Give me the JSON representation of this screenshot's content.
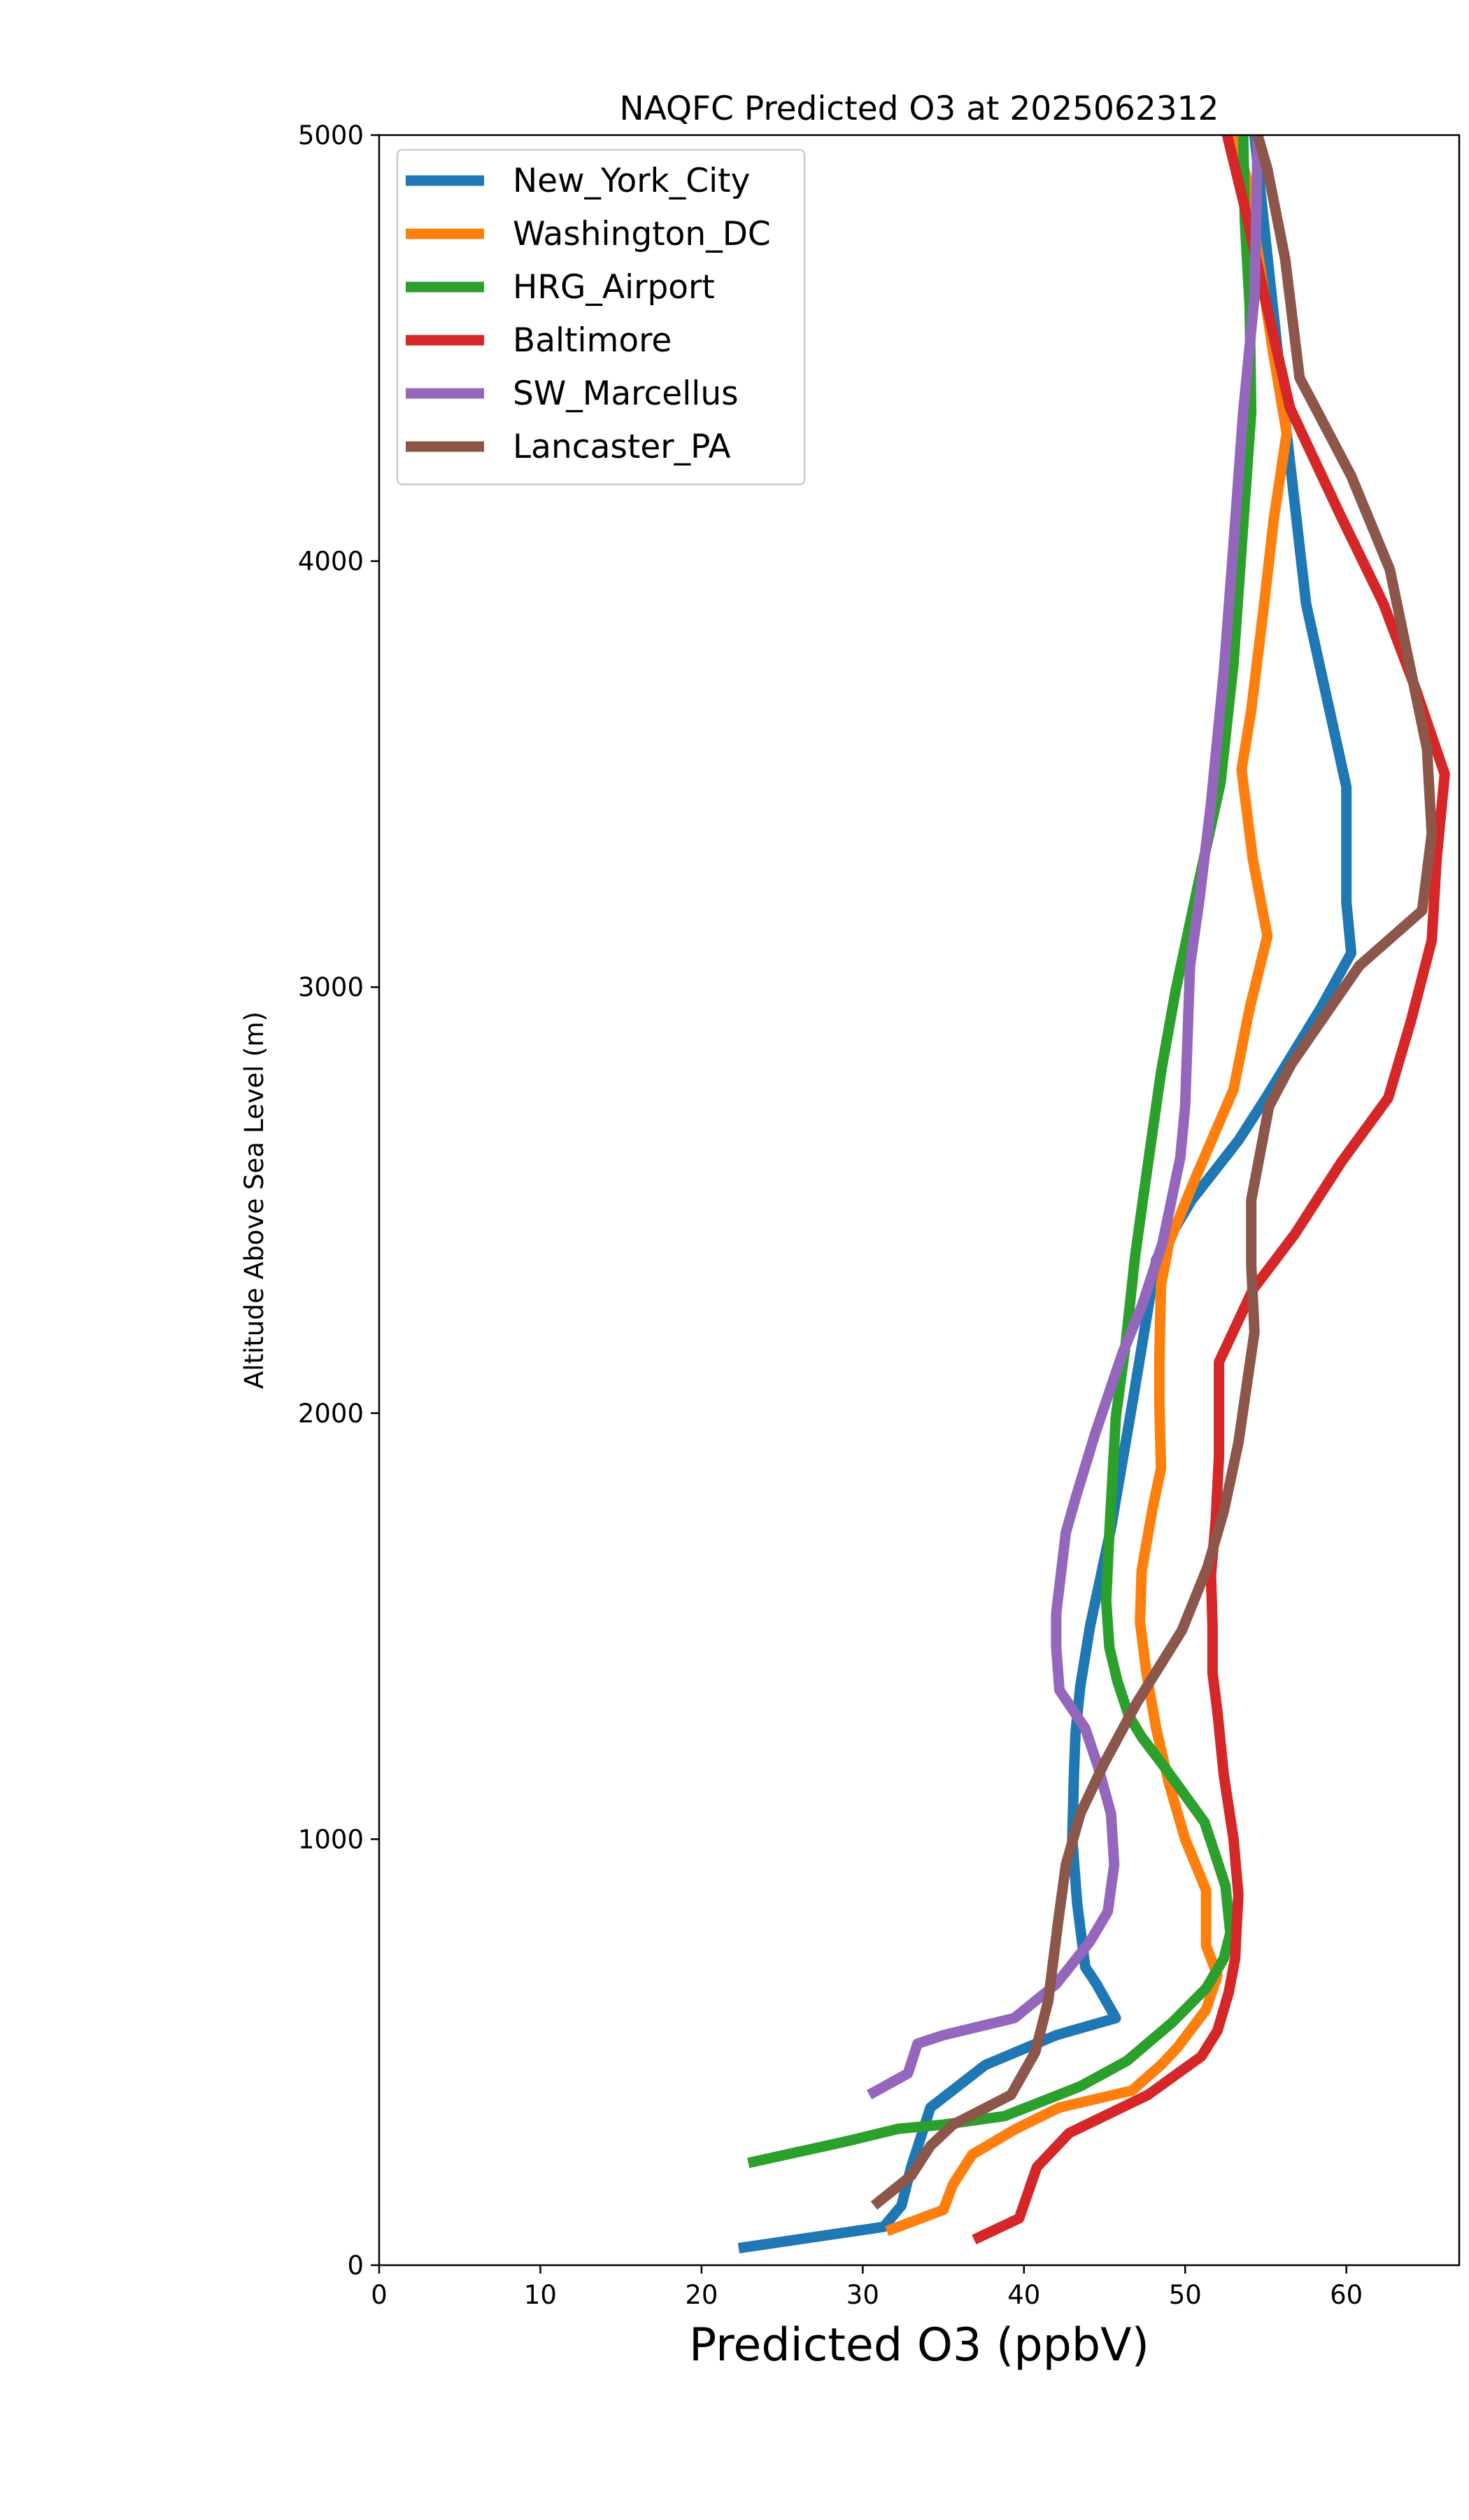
{
  "chart_data": {
    "type": "line",
    "title": "NAQFC Predicted O3 at 2025062312",
    "xlabel": "Predicted O3 (ppbV)",
    "ylabel": "Altitude Above Sea Level (m)",
    "xlim": [
      0,
      67
    ],
    "ylim": [
      0,
      5000
    ],
    "xticks": [
      0,
      10,
      20,
      30,
      40,
      50,
      60
    ],
    "yticks": [
      0,
      1000,
      2000,
      3000,
      4000,
      5000
    ],
    "grid": false,
    "legend_position": "upper-left",
    "series": [
      {
        "name": "New_York_City",
        "color": "#1f77b4",
        "points": [
          [
            22.3,
            40
          ],
          [
            31.3,
            90
          ],
          [
            32.4,
            140
          ],
          [
            33.0,
            230
          ],
          [
            34.2,
            370
          ],
          [
            37.6,
            470
          ],
          [
            42.0,
            540
          ],
          [
            45.7,
            580
          ],
          [
            44.5,
            660
          ],
          [
            43.8,
            700
          ],
          [
            43.3,
            850
          ],
          [
            43.0,
            1000
          ],
          [
            43.1,
            1150
          ],
          [
            43.2,
            1250
          ],
          [
            43.5,
            1360
          ],
          [
            44.1,
            1500
          ],
          [
            45.4,
            1730
          ],
          [
            46.8,
            2040
          ],
          [
            48.2,
            2360
          ],
          [
            50.4,
            2500
          ],
          [
            53.3,
            2640
          ],
          [
            55.0,
            2740
          ],
          [
            58.4,
            2950
          ],
          [
            60.3,
            3080
          ],
          [
            60.0,
            3200
          ],
          [
            60.0,
            3470
          ],
          [
            57.5,
            3900
          ],
          [
            56.0,
            4400
          ],
          [
            54.3,
            5000
          ]
        ]
      },
      {
        "name": "Washington_DC",
        "color": "#ff7f0e",
        "points": [
          [
            31.5,
            80
          ],
          [
            35.0,
            130
          ],
          [
            35.6,
            190
          ],
          [
            36.8,
            260
          ],
          [
            39.5,
            320
          ],
          [
            42.2,
            370
          ],
          [
            46.7,
            410
          ],
          [
            48.5,
            470
          ],
          [
            49.5,
            510
          ],
          [
            51.3,
            600
          ],
          [
            52.0,
            680
          ],
          [
            51.3,
            750
          ],
          [
            51.3,
            880
          ],
          [
            50.0,
            1000
          ],
          [
            49.0,
            1130
          ],
          [
            48.2,
            1260
          ],
          [
            47.6,
            1390
          ],
          [
            47.2,
            1510
          ],
          [
            47.3,
            1630
          ],
          [
            48.0,
            1780
          ],
          [
            48.5,
            1870
          ],
          [
            48.4,
            2020
          ],
          [
            48.4,
            2140
          ],
          [
            48.5,
            2300
          ],
          [
            49.0,
            2400
          ],
          [
            50.5,
            2540
          ],
          [
            53.0,
            2760
          ],
          [
            54.0,
            2950
          ],
          [
            55.1,
            3120
          ],
          [
            54.2,
            3300
          ],
          [
            53.5,
            3510
          ],
          [
            54.1,
            3650
          ],
          [
            54.9,
            3900
          ],
          [
            55.5,
            4100
          ],
          [
            56.3,
            4300
          ],
          [
            55.5,
            4480
          ],
          [
            53.8,
            4900
          ],
          [
            53.1,
            5000
          ]
        ]
      },
      {
        "name": "HRG_Airport",
        "color": "#2ca02c",
        "points": [
          [
            22.9,
            240
          ],
          [
            28.9,
            290
          ],
          [
            32.2,
            320
          ],
          [
            35.0,
            330
          ],
          [
            38.8,
            350
          ],
          [
            43.5,
            420
          ],
          [
            46.4,
            480
          ],
          [
            49.2,
            570
          ],
          [
            51.3,
            650
          ],
          [
            52.4,
            720
          ],
          [
            52.8,
            780
          ],
          [
            52.5,
            890
          ],
          [
            51.2,
            1040
          ],
          [
            48.9,
            1160
          ],
          [
            47.3,
            1240
          ],
          [
            46.5,
            1290
          ],
          [
            45.8,
            1370
          ],
          [
            45.3,
            1450
          ],
          [
            45.1,
            1560
          ],
          [
            45.3,
            1720
          ],
          [
            45.7,
            1990
          ],
          [
            46.3,
            2160
          ],
          [
            46.9,
            2370
          ],
          [
            47.6,
            2560
          ],
          [
            48.5,
            2800
          ],
          [
            49.4,
            2990
          ],
          [
            50.8,
            3240
          ],
          [
            52.2,
            3480
          ],
          [
            53.0,
            3760
          ],
          [
            53.5,
            4030
          ],
          [
            54.1,
            4350
          ],
          [
            54.0,
            4600
          ],
          [
            53.7,
            4800
          ],
          [
            53.6,
            5000
          ]
        ]
      },
      {
        "name": "Baltimore",
        "color": "#d62728",
        "points": [
          [
            36.9,
            60
          ],
          [
            39.7,
            110
          ],
          [
            40.8,
            230
          ],
          [
            42.8,
            310
          ],
          [
            47.7,
            400
          ],
          [
            51.0,
            490
          ],
          [
            52.0,
            550
          ],
          [
            52.7,
            640
          ],
          [
            53.1,
            720
          ],
          [
            53.2,
            800
          ],
          [
            53.3,
            870
          ],
          [
            53.0,
            1000
          ],
          [
            52.4,
            1150
          ],
          [
            52.0,
            1300
          ],
          [
            51.7,
            1390
          ],
          [
            51.7,
            1500
          ],
          [
            51.6,
            1620
          ],
          [
            51.9,
            1750
          ],
          [
            52.1,
            1900
          ],
          [
            52.1,
            2120
          ],
          [
            54.2,
            2290
          ],
          [
            56.8,
            2420
          ],
          [
            59.7,
            2590
          ],
          [
            62.6,
            2740
          ],
          [
            64.0,
            2920
          ],
          [
            65.3,
            3110
          ],
          [
            65.6,
            3300
          ],
          [
            66.1,
            3500
          ],
          [
            64.3,
            3700
          ],
          [
            62.3,
            3900
          ],
          [
            59.6,
            4110
          ],
          [
            56.5,
            4360
          ],
          [
            54.7,
            4660
          ],
          [
            53.7,
            4830
          ],
          [
            52.6,
            5000
          ]
        ]
      },
      {
        "name": "SW_Marcellus",
        "color": "#9467bd",
        "points": [
          [
            30.4,
            400
          ],
          [
            32.8,
            450
          ],
          [
            33.4,
            520
          ],
          [
            35.0,
            540
          ],
          [
            39.4,
            580
          ],
          [
            42.0,
            660
          ],
          [
            44.1,
            760
          ],
          [
            45.2,
            830
          ],
          [
            45.6,
            940
          ],
          [
            45.4,
            1060
          ],
          [
            44.6,
            1170
          ],
          [
            43.8,
            1260
          ],
          [
            42.2,
            1350
          ],
          [
            42.0,
            1450
          ],
          [
            42.0,
            1530
          ],
          [
            42.6,
            1720
          ],
          [
            43.2,
            1800
          ],
          [
            44.4,
            1950
          ],
          [
            46.1,
            2140
          ],
          [
            47.3,
            2250
          ],
          [
            48.6,
            2400
          ],
          [
            49.7,
            2600
          ],
          [
            50.0,
            2720
          ],
          [
            50.1,
            2830
          ],
          [
            50.3,
            3050
          ],
          [
            50.9,
            3210
          ],
          [
            51.6,
            3430
          ],
          [
            52.4,
            3740
          ],
          [
            53.0,
            4040
          ],
          [
            53.6,
            4350
          ],
          [
            54.3,
            4620
          ],
          [
            54.4,
            4790
          ],
          [
            54.5,
            5000
          ]
        ]
      },
      {
        "name": "Lancaster_PA",
        "color": "#8c564b",
        "points": [
          [
            30.7,
            140
          ],
          [
            33.0,
            210
          ],
          [
            34.2,
            280
          ],
          [
            35.6,
            330
          ],
          [
            39.2,
            400
          ],
          [
            40.7,
            500
          ],
          [
            41.5,
            620
          ],
          [
            42.1,
            800
          ],
          [
            42.6,
            940
          ],
          [
            43.5,
            1060
          ],
          [
            45.0,
            1180
          ],
          [
            47.0,
            1320
          ],
          [
            49.8,
            1490
          ],
          [
            51.4,
            1640
          ],
          [
            52.4,
            1770
          ],
          [
            53.3,
            1930
          ],
          [
            54.3,
            2190
          ],
          [
            54.1,
            2350
          ],
          [
            54.1,
            2500
          ],
          [
            55.2,
            2720
          ],
          [
            56.6,
            2820
          ],
          [
            60.8,
            3050
          ],
          [
            64.7,
            3180
          ],
          [
            65.3,
            3360
          ],
          [
            65.0,
            3560
          ],
          [
            62.7,
            3980
          ],
          [
            60.3,
            4200
          ],
          [
            57.1,
            4430
          ],
          [
            56.2,
            4710
          ],
          [
            55.1,
            4920
          ],
          [
            54.5,
            5000
          ]
        ]
      }
    ]
  }
}
